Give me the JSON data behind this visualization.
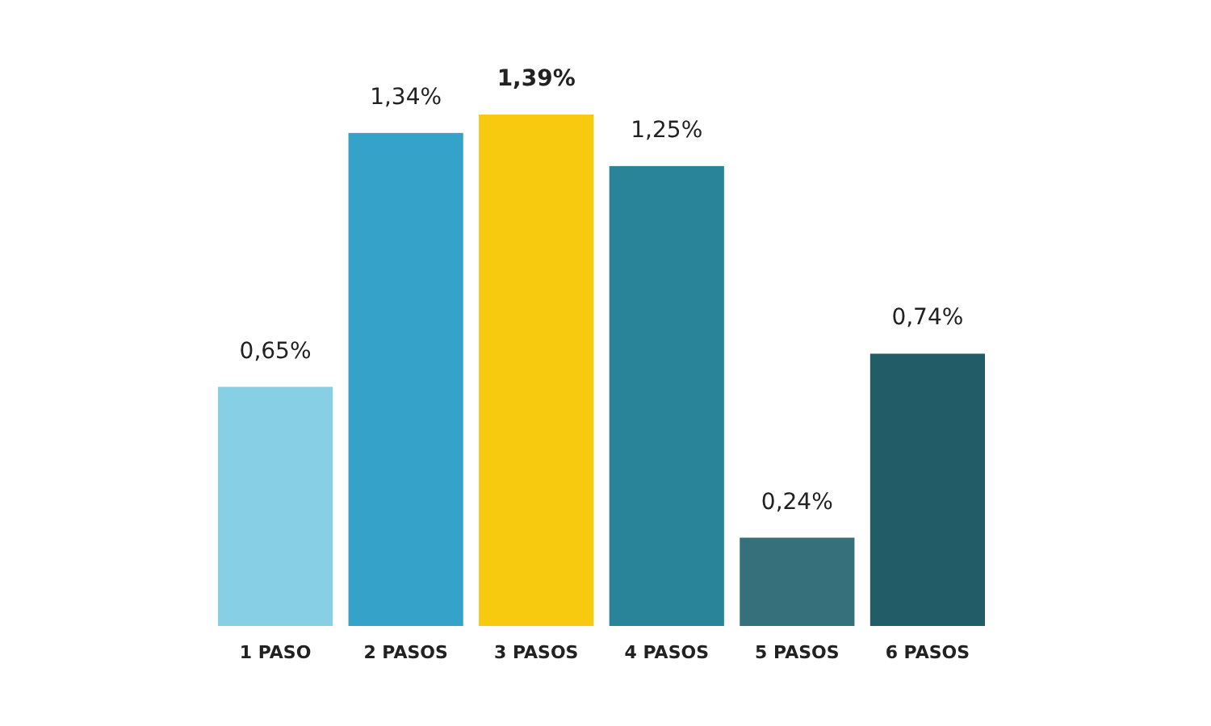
{
  "chart_data": {
    "type": "bar",
    "categories": [
      "1 PASO",
      "2 PASOS",
      "3 PASOS",
      "4 PASOS",
      "5 PASOS",
      "6 PASOS"
    ],
    "values": [
      0.65,
      1.34,
      1.39,
      1.25,
      0.24,
      0.74
    ],
    "value_labels": [
      "0,65%",
      "1,34%",
      "1,39%",
      "1,25%",
      "0,24%",
      "0,74%"
    ],
    "colors": [
      "#87cfe5",
      "#35a3c9",
      "#f7ca0f",
      "#2a8499",
      "#36717b",
      "#225c66"
    ]
  }
}
